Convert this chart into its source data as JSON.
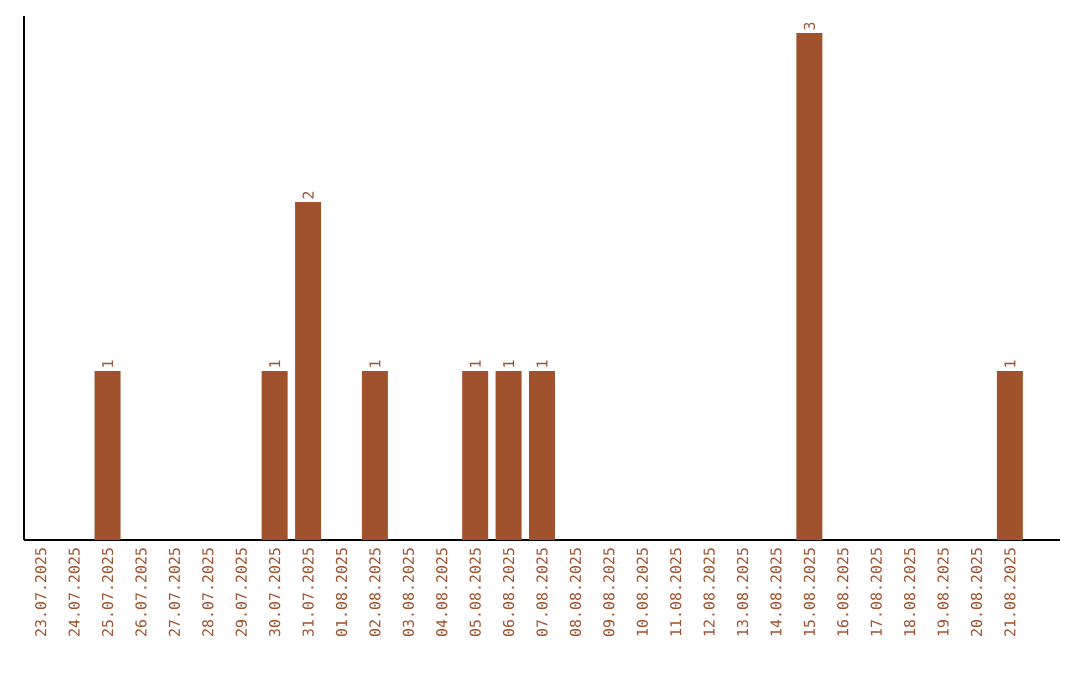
{
  "chart_data": {
    "type": "bar",
    "categories": [
      "23.07.2025",
      "24.07.2025",
      "25.07.2025",
      "26.07.2025",
      "27.07.2025",
      "28.07.2025",
      "29.07.2025",
      "30.07.2025",
      "31.07.2025",
      "01.08.2025",
      "02.08.2025",
      "03.08.2025",
      "04.08.2025",
      "05.08.2025",
      "06.08.2025",
      "07.08.2025",
      "08.08.2025",
      "09.08.2025",
      "10.08.2025",
      "11.08.2025",
      "12.08.2025",
      "13.08.2025",
      "14.08.2025",
      "15.08.2025",
      "16.08.2025",
      "17.08.2025",
      "18.08.2025",
      "19.08.2025",
      "20.08.2025",
      "21.08.2025"
    ],
    "values": [
      0,
      0,
      1,
      0,
      0,
      0,
      0,
      1,
      2,
      0,
      1,
      0,
      0,
      1,
      1,
      1,
      0,
      0,
      0,
      0,
      0,
      0,
      0,
      3,
      0,
      0,
      0,
      0,
      0,
      1
    ],
    "value_labels": [
      null,
      null,
      "1",
      null,
      null,
      null,
      null,
      "1",
      "2",
      null,
      "1",
      null,
      null,
      "1",
      "1",
      "1",
      null,
      null,
      null,
      null,
      null,
      null,
      null,
      "3",
      null,
      null,
      null,
      null,
      null,
      "1"
    ],
    "color": "#a0522d",
    "ylim": [
      0,
      3.1
    ],
    "tick_labels": "x"
  }
}
